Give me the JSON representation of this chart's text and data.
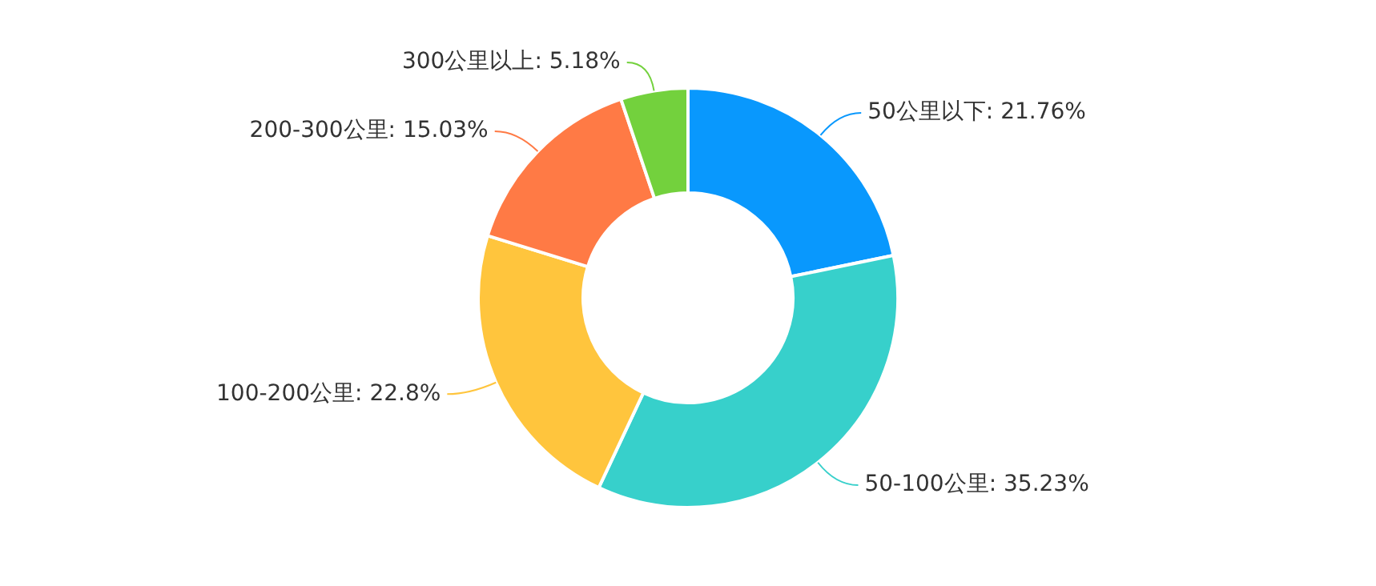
{
  "chart_data": {
    "type": "donut",
    "categories": [
      "50公里以下",
      "50-100公里",
      "100-200公里",
      "200-300公里",
      "300公里以上"
    ],
    "values": [
      21.76,
      35.23,
      22.8,
      15.03,
      5.18
    ],
    "value_labels": [
      "21.76%",
      "35.23%",
      "22.8%",
      "15.03%",
      "5.18%"
    ],
    "colors": [
      "#0998fd",
      "#37d0cb",
      "#ffc53d",
      "#ff7a45",
      "#73d13d"
    ],
    "legend": false
  }
}
